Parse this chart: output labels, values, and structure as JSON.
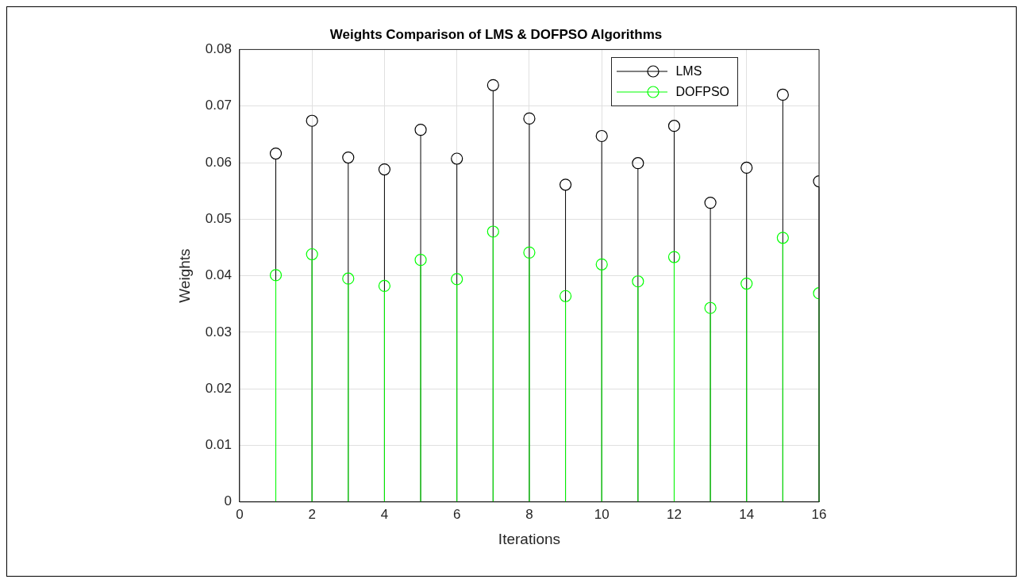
{
  "chart_data": {
    "type": "lollipop",
    "title": "Weights Comparison of LMS & DOFPSO Algorithms",
    "xlabel": "Iterations",
    "ylabel": "Weights",
    "x": [
      1,
      2,
      3,
      4,
      5,
      6,
      7,
      8,
      9,
      10,
      11,
      12,
      13,
      14,
      15,
      16
    ],
    "series": [
      {
        "name": "LMS",
        "color": "#000000",
        "values": [
          0.0616,
          0.0674,
          0.0609,
          0.0588,
          0.0658,
          0.0607,
          0.0737,
          0.0678,
          0.0561,
          0.0647,
          0.0599,
          0.0665,
          0.0529,
          0.0591,
          0.072,
          0.0567
        ]
      },
      {
        "name": "DOFPSO",
        "color": "#00ff00",
        "values": [
          0.0401,
          0.0438,
          0.0395,
          0.0382,
          0.0428,
          0.0394,
          0.0478,
          0.0441,
          0.0364,
          0.042,
          0.039,
          0.0433,
          0.0343,
          0.0386,
          0.0467,
          0.0369
        ]
      }
    ],
    "xlim": [
      0,
      16
    ],
    "xticks": [
      0,
      2,
      4,
      6,
      8,
      10,
      12,
      14,
      16
    ],
    "ylim": [
      0,
      0.08
    ],
    "yticks": [
      0,
      0.01,
      0.02,
      0.03,
      0.04,
      0.05,
      0.06,
      0.07,
      0.08
    ],
    "grid": true,
    "legend": "top right",
    "marker": "circle",
    "line_style": "solid"
  }
}
